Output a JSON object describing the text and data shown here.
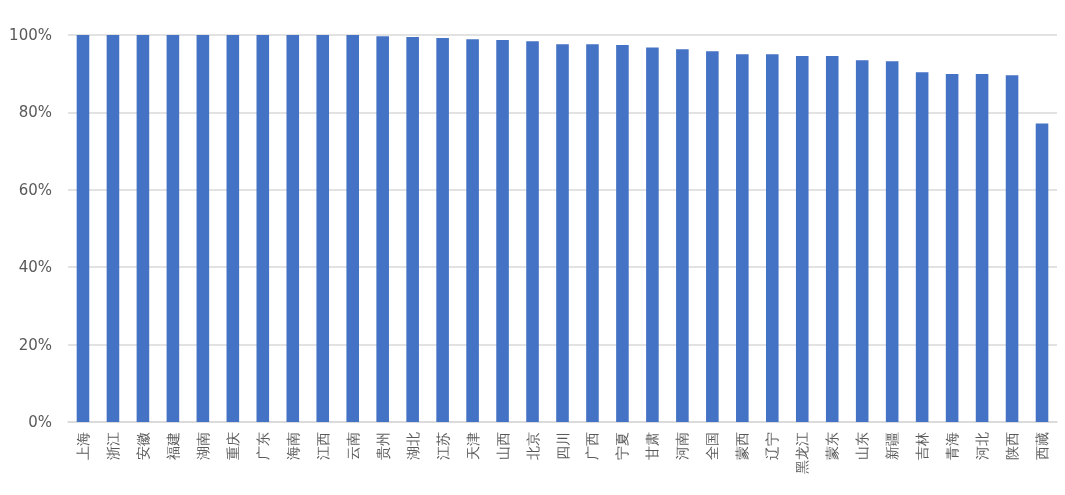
{
  "chart_data": {
    "type": "bar",
    "categories": [
      "上海",
      "浙江",
      "安徽",
      "福建",
      "湖南",
      "重庆",
      "广东",
      "海南",
      "江西",
      "云南",
      "贵州",
      "湖北",
      "江苏",
      "天津",
      "山西",
      "北京",
      "四川",
      "广西",
      "宁夏",
      "甘肃",
      "河南",
      "全国",
      "蒙西",
      "辽宁",
      "黑龙江",
      "蒙东",
      "山东",
      "新疆",
      "吉林",
      "青海",
      "河北",
      "陕西",
      "西藏"
    ],
    "values": [
      100,
      100,
      100,
      100,
      100,
      100,
      100,
      100,
      100,
      100,
      99.7,
      99.5,
      99.2,
      98.9,
      98.7,
      98.4,
      97.6,
      97.6,
      97.4,
      96.8,
      96.3,
      95.8,
      95.0,
      95.0,
      94.6,
      94.6,
      93.5,
      93.2,
      90.4,
      89.9,
      89.9,
      89.6,
      77.1
    ],
    "color": "#4472c4",
    "ylim": [
      0,
      100
    ],
    "yticks": [
      {
        "value": 0,
        "label": "0%"
      },
      {
        "value": 20,
        "label": "20%"
      },
      {
        "value": 40,
        "label": "40%"
      },
      {
        "value": 60,
        "label": "60%"
      },
      {
        "value": 80,
        "label": "80%"
      },
      {
        "value": 100,
        "label": "100%"
      }
    ],
    "grid": "y"
  }
}
